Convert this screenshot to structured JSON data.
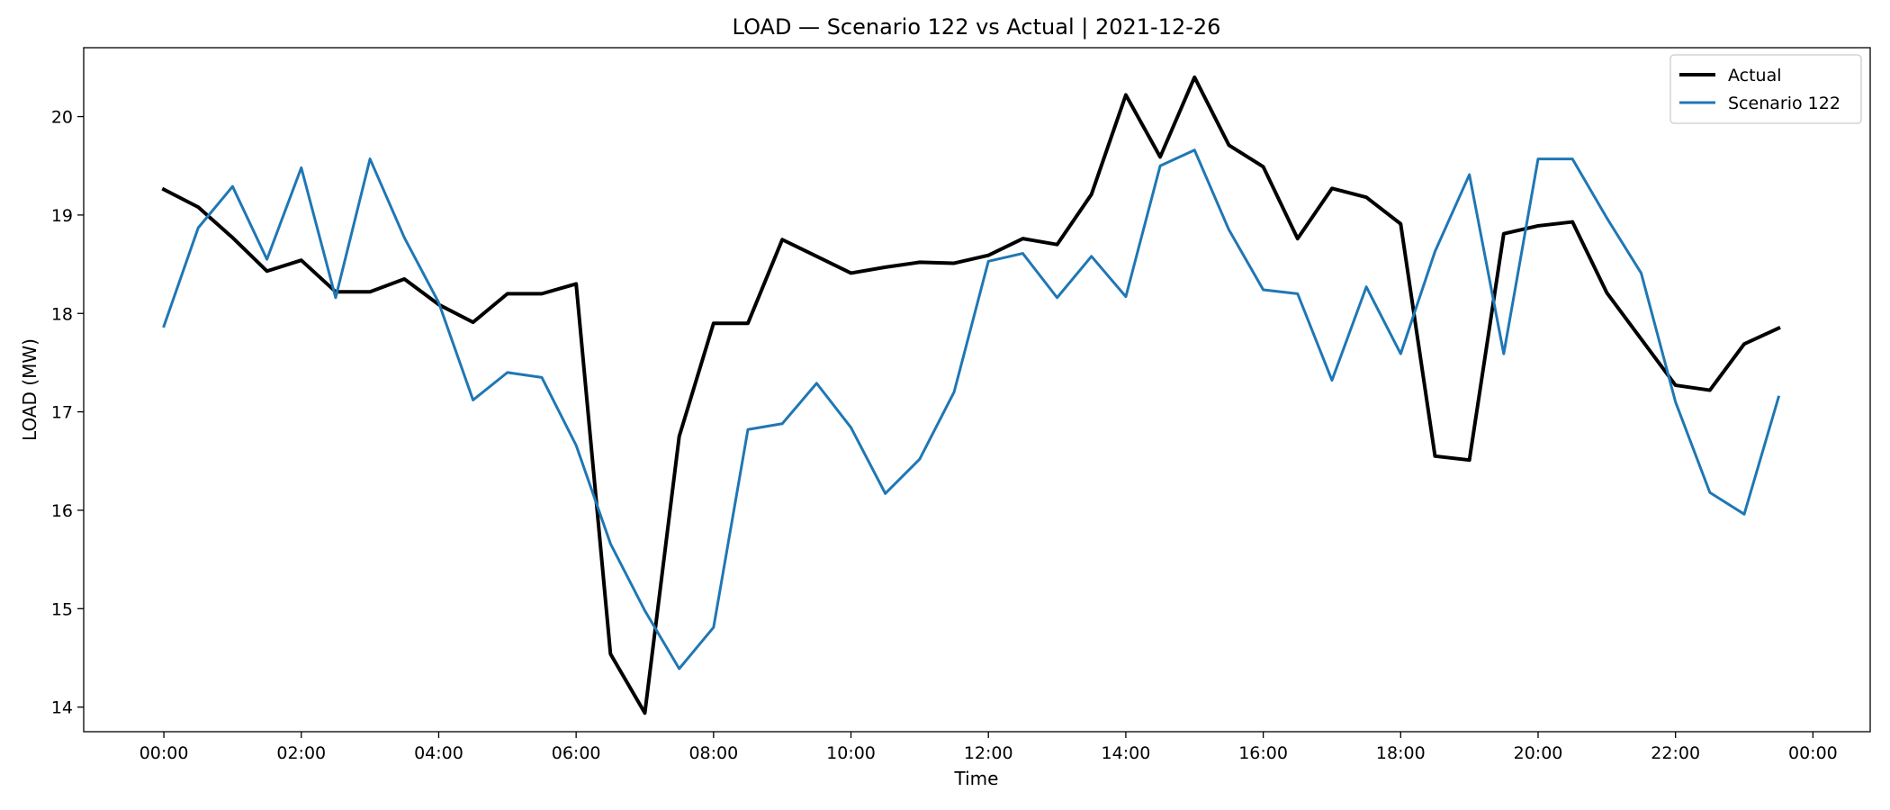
{
  "chart_data": {
    "type": "line",
    "title": "LOAD — Scenario 122 vs Actual | 2021-12-26",
    "xlabel": "Time",
    "ylabel": "LOAD (MW)",
    "x": [
      "00:00",
      "00:30",
      "01:00",
      "01:30",
      "02:00",
      "02:30",
      "03:00",
      "03:30",
      "04:00",
      "04:30",
      "05:00",
      "05:30",
      "06:00",
      "06:30",
      "07:00",
      "07:30",
      "08:00",
      "08:30",
      "09:00",
      "09:30",
      "10:00",
      "10:30",
      "11:00",
      "11:30",
      "12:00",
      "12:30",
      "13:00",
      "13:30",
      "14:00",
      "14:30",
      "15:00",
      "15:30",
      "16:00",
      "16:30",
      "17:00",
      "17:30",
      "18:00",
      "18:30",
      "19:00",
      "19:30",
      "20:00",
      "20:30",
      "21:00",
      "21:30",
      "22:00",
      "22:30",
      "23:00",
      "23:30"
    ],
    "xticks": [
      "00:00",
      "02:00",
      "04:00",
      "06:00",
      "08:00",
      "10:00",
      "12:00",
      "14:00",
      "16:00",
      "18:00",
      "20:00",
      "22:00",
      "00:00"
    ],
    "xlim": [
      "2021-12-25 22:50",
      "2021-12-27 00:50"
    ],
    "ylim": [
      13.75,
      20.7
    ],
    "yticks": [
      14,
      15,
      16,
      17,
      18,
      19,
      20
    ],
    "grid": false,
    "legend_position": "top-right",
    "series": [
      {
        "name": "Actual",
        "color": "#000000",
        "values": [
          19.26,
          19.08,
          18.77,
          18.43,
          18.54,
          18.22,
          18.22,
          18.35,
          18.09,
          17.91,
          18.2,
          18.2,
          18.3,
          14.54,
          13.94,
          16.75,
          17.9,
          17.9,
          18.75,
          18.58,
          18.41,
          18.47,
          18.52,
          18.51,
          18.59,
          18.76,
          18.7,
          19.21,
          20.22,
          19.59,
          20.4,
          19.71,
          19.49,
          18.76,
          19.27,
          19.18,
          18.91,
          16.55,
          16.51,
          18.81,
          18.89,
          18.93,
          18.21,
          17.74,
          17.27,
          17.22,
          17.69,
          17.85
        ]
      },
      {
        "name": "Scenario 122",
        "color": "#1f77b4",
        "values": [
          17.87,
          18.87,
          19.29,
          18.55,
          19.48,
          18.16,
          19.57,
          18.77,
          18.11,
          17.12,
          17.4,
          17.35,
          16.66,
          15.66,
          14.98,
          14.39,
          14.81,
          16.82,
          16.88,
          17.29,
          16.84,
          16.17,
          16.52,
          17.2,
          18.53,
          18.61,
          18.16,
          18.58,
          18.17,
          19.5,
          19.66,
          18.85,
          18.24,
          18.2,
          17.32,
          18.27,
          17.59,
          18.63,
          19.41,
          17.59,
          19.57,
          19.57,
          18.97,
          18.41,
          17.1,
          16.18,
          15.96,
          17.15
        ]
      }
    ]
  }
}
